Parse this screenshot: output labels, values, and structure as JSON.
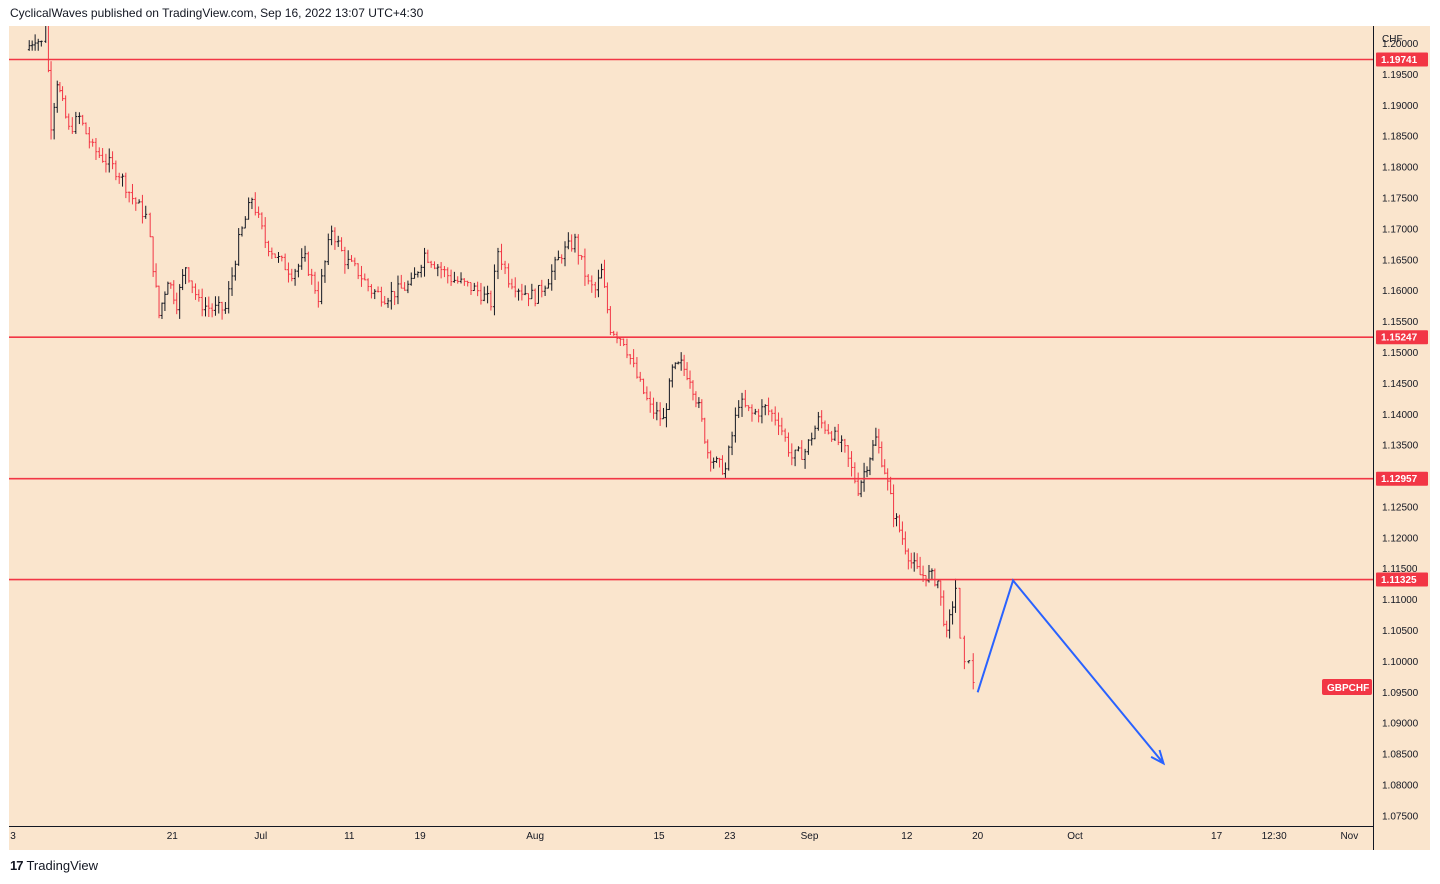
{
  "header": {
    "publish_line": "CyclicalWaves published on TradingView.com, Sep 16, 2022 13:07 UTC+4:30"
  },
  "footer": {
    "logo_glyph": "17",
    "brand": "TradingView"
  },
  "colors": {
    "background": "#fae5cd",
    "up_candle": "#131722",
    "down_candle": "#f23645",
    "level_line": "#f23645",
    "projection": "#2962ff"
  },
  "chart_data": {
    "type": "ohlc",
    "symbol": "GBPCHF",
    "currency_label": "CHF",
    "y_axis_ticks": [
      "1.20000",
      "1.19500",
      "1.19000",
      "1.18500",
      "1.18000",
      "1.17500",
      "1.17000",
      "1.16500",
      "1.16000",
      "1.15500",
      "1.15000",
      "1.14500",
      "1.14000",
      "1.13500",
      "1.13000",
      "1.12500",
      "1.12000",
      "1.11500",
      "1.11000",
      "1.10500",
      "1.10000",
      "1.09500",
      "1.09000",
      "1.08500",
      "1.08000",
      "1.07500"
    ],
    "ylim": [
      1.07337,
      1.20283
    ],
    "x_axis_ticks": [
      {
        "label": "3",
        "day": 0
      },
      {
        "label": "21",
        "day": 18
      },
      {
        "label": "Jul",
        "day": 28
      },
      {
        "label": "11",
        "day": 38
      },
      {
        "label": "19",
        "day": 46
      },
      {
        "label": "Aug",
        "day": 59
      },
      {
        "label": "15",
        "day": 73
      },
      {
        "label": "23",
        "day": 81
      },
      {
        "label": "Sep",
        "day": 90
      },
      {
        "label": "12",
        "day": 101
      },
      {
        "label": "20",
        "day": 109
      },
      {
        "label": "Oct",
        "day": 120
      },
      {
        "label": "17",
        "day": 136
      },
      {
        "label": "12:30",
        "day": 142.5
      },
      {
        "label": "Nov",
        "day": 151
      }
    ],
    "horizontal_levels": [
      {
        "price": 1.19741,
        "label": "1.19741"
      },
      {
        "price": 1.15247,
        "label": "1.15247"
      },
      {
        "price": 1.12957,
        "label": "1.12957"
      },
      {
        "price": 1.11325,
        "label": "1.11325"
      }
    ],
    "price_path": [
      [
        1.5,
        1.199
      ],
      [
        2.5,
        1.201
      ],
      [
        3.2,
        1.2
      ],
      [
        3.7,
        1.204
      ],
      [
        4.3,
        1.187
      ],
      [
        5.0,
        1.194
      ],
      [
        5.6,
        1.19
      ],
      [
        6.3,
        1.186
      ],
      [
        7.5,
        1.188
      ],
      [
        9.0,
        1.183
      ],
      [
        10.5,
        1.181
      ],
      [
        12.0,
        1.179
      ],
      [
        13.5,
        1.175
      ],
      [
        15.0,
        1.172
      ],
      [
        15.5,
        1.168
      ],
      [
        16.5,
        1.156
      ],
      [
        17.5,
        1.162
      ],
      [
        18.5,
        1.158
      ],
      [
        19.5,
        1.164
      ],
      [
        21.0,
        1.158
      ],
      [
        22.5,
        1.157
      ],
      [
        24.0,
        1.157
      ],
      [
        25.5,
        1.168
      ],
      [
        27.0,
        1.175
      ],
      [
        28.5,
        1.168
      ],
      [
        30.0,
        1.165
      ],
      [
        31.5,
        1.163
      ],
      [
        33.0,
        1.165
      ],
      [
        34.5,
        1.159
      ],
      [
        36.0,
        1.17
      ],
      [
        37.5,
        1.165
      ],
      [
        39.0,
        1.163
      ],
      [
        40.5,
        1.16
      ],
      [
        42.0,
        1.159
      ],
      [
        43.5,
        1.16
      ],
      [
        45.0,
        1.161
      ],
      [
        46.5,
        1.166
      ],
      [
        48.0,
        1.164
      ],
      [
        49.5,
        1.162
      ],
      [
        51.0,
        1.161
      ],
      [
        52.5,
        1.16
      ],
      [
        54.0,
        1.158
      ],
      [
        54.8,
        1.1665
      ],
      [
        56.0,
        1.162
      ],
      [
        57.5,
        1.16
      ],
      [
        59.0,
        1.159
      ],
      [
        60.5,
        1.162
      ],
      [
        62.0,
        1.166
      ],
      [
        63.5,
        1.168
      ],
      [
        65.0,
        1.161
      ],
      [
        65.8,
        1.16
      ],
      [
        66.5,
        1.163
      ],
      [
        67.5,
        1.154
      ],
      [
        69.0,
        1.152
      ],
      [
        70.5,
        1.146
      ],
      [
        72.0,
        1.141
      ],
      [
        73.5,
        1.139
      ],
      [
        74.5,
        1.147
      ],
      [
        75.5,
        1.148
      ],
      [
        76.5,
        1.146
      ],
      [
        77.5,
        1.141
      ],
      [
        78.5,
        1.134
      ],
      [
        79.5,
        1.132
      ],
      [
        80.5,
        1.131
      ],
      [
        82.0,
        1.142
      ],
      [
        83.5,
        1.14
      ],
      [
        85.0,
        1.141
      ],
      [
        86.5,
        1.139
      ],
      [
        88.0,
        1.133
      ],
      [
        89.5,
        1.134
      ],
      [
        91.0,
        1.139
      ],
      [
        92.5,
        1.137
      ],
      [
        94.0,
        1.134
      ],
      [
        95.5,
        1.128
      ],
      [
        96.5,
        1.132
      ],
      [
        97.5,
        1.136
      ],
      [
        98.5,
        1.131
      ],
      [
        99.5,
        1.124
      ],
      [
        100.5,
        1.12
      ],
      [
        101.5,
        1.116
      ],
      [
        102.5,
        1.114
      ],
      [
        103.5,
        1.114
      ],
      [
        104.5,
        1.113
      ],
      [
        105.5,
        1.104
      ],
      [
        106.5,
        1.112
      ],
      [
        107.0,
        1.103
      ],
      [
        107.5,
        1.099
      ],
      [
        108.0,
        1.101
      ],
      [
        108.5,
        1.096
      ]
    ],
    "projection_path": [
      [
        109.0,
        1.095
      ],
      [
        113.0,
        1.1131
      ],
      [
        130.0,
        1.0835
      ]
    ],
    "last_price_label": "GBPCHF"
  }
}
